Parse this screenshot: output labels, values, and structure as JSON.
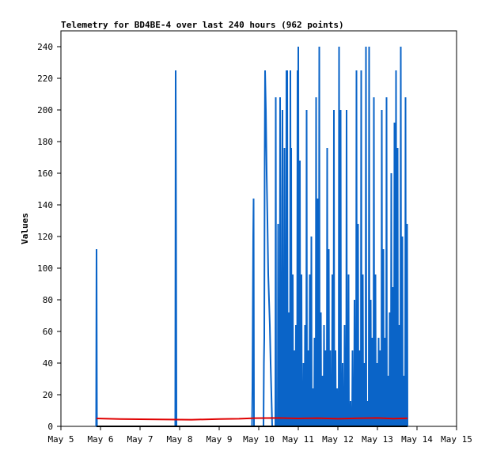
{
  "chart_data": {
    "type": "line",
    "title": "Telemetry for BD4BE-4 over last 240 hours (962 points)",
    "ylabel": "Values",
    "xlabel": "",
    "xlim": [
      5,
      15
    ],
    "ylim": [
      0,
      250
    ],
    "x_ticks": [
      {
        "value": 5,
        "label": "May 5"
      },
      {
        "value": 6,
        "label": "May 6"
      },
      {
        "value": 7,
        "label": "May 7"
      },
      {
        "value": 8,
        "label": "May 8"
      },
      {
        "value": 9,
        "label": "May 9"
      },
      {
        "value": 10,
        "label": "May 10"
      },
      {
        "value": 11,
        "label": "May 11"
      },
      {
        "value": 12,
        "label": "May 12"
      },
      {
        "value": 13,
        "label": "May 13"
      },
      {
        "value": 14,
        "label": "May 14"
      },
      {
        "value": 15,
        "label": "May 15"
      }
    ],
    "y_ticks": [
      0,
      20,
      40,
      60,
      80,
      100,
      120,
      140,
      160,
      180,
      200,
      220,
      240
    ],
    "grid": false,
    "colors": {
      "spikes": "#0a64c8",
      "baseline": "#e00000",
      "axis": "#000000"
    },
    "series": [
      {
        "color": "#0a64c8",
        "points": [
          [
            5.89,
            0
          ],
          [
            5.9,
            112
          ],
          [
            5.91,
            0
          ],
          [
            7.89,
            0
          ],
          [
            7.9,
            225
          ],
          [
            7.91,
            128
          ],
          [
            7.92,
            0
          ],
          [
            9.83,
            0
          ],
          [
            9.84,
            24
          ],
          [
            9.85,
            72
          ],
          [
            9.86,
            120
          ],
          [
            9.87,
            144
          ],
          [
            9.88,
            0
          ],
          [
            10.12,
            0
          ],
          [
            10.13,
            40
          ],
          [
            10.14,
            56
          ],
          [
            10.15,
            168
          ],
          [
            10.16,
            225
          ],
          [
            10.18,
            200
          ],
          [
            10.2,
            160
          ],
          [
            10.22,
            130
          ],
          [
            10.24,
            96
          ],
          [
            10.26,
            80
          ],
          [
            10.28,
            64
          ],
          [
            10.3,
            40
          ],
          [
            10.32,
            20
          ],
          [
            10.34,
            0
          ],
          [
            10.42,
            0
          ],
          [
            10.43,
            208
          ],
          [
            10.44,
            0
          ],
          [
            10.48,
            0
          ],
          [
            10.49,
            128
          ],
          [
            10.5,
            0
          ],
          [
            10.53,
            0
          ],
          [
            10.54,
            208
          ],
          [
            10.55,
            40
          ],
          [
            10.56,
            0
          ],
          [
            10.58,
            0
          ],
          [
            10.59,
            144
          ],
          [
            10.6,
            200
          ],
          [
            10.61,
            20
          ],
          [
            10.62,
            0
          ],
          [
            10.64,
            0
          ],
          [
            10.65,
            176
          ],
          [
            10.66,
            48
          ],
          [
            10.67,
            0
          ],
          [
            10.69,
            0
          ],
          [
            10.7,
            225
          ],
          [
            10.71,
            56
          ],
          [
            10.72,
            225
          ],
          [
            10.73,
            0
          ],
          [
            10.75,
            0
          ],
          [
            10.76,
            72
          ],
          [
            10.77,
            0
          ],
          [
            10.79,
            0
          ],
          [
            10.8,
            225
          ],
          [
            10.81,
            16
          ],
          [
            10.82,
            176
          ],
          [
            10.83,
            0
          ],
          [
            10.85,
            0
          ],
          [
            10.86,
            96
          ],
          [
            10.87,
            0
          ],
          [
            10.89,
            0
          ],
          [
            10.9,
            48
          ],
          [
            10.91,
            0
          ],
          [
            10.93,
            0
          ],
          [
            10.94,
            64
          ],
          [
            10.95,
            0
          ],
          [
            10.97,
            0
          ],
          [
            10.98,
            225
          ],
          [
            10.99,
            24
          ],
          [
            11.0,
            240
          ],
          [
            11.01,
            0
          ],
          [
            11.03,
            0
          ],
          [
            11.04,
            168
          ],
          [
            11.05,
            0
          ],
          [
            11.07,
            0
          ],
          [
            11.08,
            96
          ],
          [
            11.09,
            0
          ],
          [
            11.12,
            0
          ],
          [
            11.13,
            40
          ],
          [
            11.14,
            0
          ],
          [
            11.16,
            0
          ],
          [
            11.17,
            64
          ],
          [
            11.18,
            0
          ],
          [
            11.2,
            0
          ],
          [
            11.21,
            200
          ],
          [
            11.22,
            0
          ],
          [
            11.24,
            0
          ],
          [
            11.25,
            48
          ],
          [
            11.26,
            0
          ],
          [
            11.28,
            0
          ],
          [
            11.29,
            96
          ],
          [
            11.3,
            0
          ],
          [
            11.32,
            0
          ],
          [
            11.33,
            120
          ],
          [
            11.34,
            0
          ],
          [
            11.36,
            0
          ],
          [
            11.37,
            24
          ],
          [
            11.38,
            0
          ],
          [
            11.4,
            0
          ],
          [
            11.41,
            56
          ],
          [
            11.42,
            0
          ],
          [
            11.44,
            0
          ],
          [
            11.45,
            208
          ],
          [
            11.46,
            0
          ],
          [
            11.48,
            0
          ],
          [
            11.49,
            144
          ],
          [
            11.5,
            0
          ],
          [
            11.52,
            0
          ],
          [
            11.53,
            240
          ],
          [
            11.54,
            0
          ],
          [
            11.56,
            0
          ],
          [
            11.57,
            72
          ],
          [
            11.58,
            0
          ],
          [
            11.6,
            0
          ],
          [
            11.61,
            32
          ],
          [
            11.62,
            0
          ],
          [
            11.64,
            0
          ],
          [
            11.65,
            64
          ],
          [
            11.66,
            0
          ],
          [
            11.68,
            0
          ],
          [
            11.69,
            48
          ],
          [
            11.7,
            0
          ],
          [
            11.72,
            0
          ],
          [
            11.73,
            176
          ],
          [
            11.74,
            0
          ],
          [
            11.76,
            0
          ],
          [
            11.77,
            112
          ],
          [
            11.78,
            0
          ],
          [
            11.8,
            0
          ],
          [
            11.81,
            48
          ],
          [
            11.82,
            0
          ],
          [
            11.85,
            0
          ],
          [
            11.86,
            96
          ],
          [
            11.87,
            0
          ],
          [
            11.89,
            0
          ],
          [
            11.9,
            200
          ],
          [
            11.91,
            0
          ],
          [
            11.93,
            0
          ],
          [
            11.94,
            48
          ],
          [
            11.95,
            0
          ],
          [
            11.97,
            0
          ],
          [
            11.98,
            24
          ],
          [
            11.99,
            0
          ],
          [
            12.02,
            0
          ],
          [
            12.03,
            240
          ],
          [
            12.04,
            0
          ],
          [
            12.06,
            0
          ],
          [
            12.07,
            200
          ],
          [
            12.08,
            0
          ],
          [
            12.11,
            0
          ],
          [
            12.12,
            40
          ],
          [
            12.13,
            0
          ],
          [
            12.16,
            0
          ],
          [
            12.17,
            64
          ],
          [
            12.18,
            0
          ],
          [
            12.21,
            0
          ],
          [
            12.22,
            200
          ],
          [
            12.23,
            0
          ],
          [
            12.26,
            0
          ],
          [
            12.27,
            96
          ],
          [
            12.28,
            0
          ],
          [
            12.31,
            0
          ],
          [
            12.32,
            16
          ],
          [
            12.33,
            0
          ],
          [
            12.36,
            0
          ],
          [
            12.37,
            48
          ],
          [
            12.38,
            0
          ],
          [
            12.41,
            0
          ],
          [
            12.42,
            80
          ],
          [
            12.43,
            0
          ],
          [
            12.46,
            0
          ],
          [
            12.47,
            225
          ],
          [
            12.48,
            0
          ],
          [
            12.5,
            0
          ],
          [
            12.51,
            128
          ],
          [
            12.52,
            0
          ],
          [
            12.54,
            0
          ],
          [
            12.55,
            48
          ],
          [
            12.56,
            0
          ],
          [
            12.58,
            0
          ],
          [
            12.59,
            225
          ],
          [
            12.6,
            0
          ],
          [
            12.62,
            0
          ],
          [
            12.63,
            96
          ],
          [
            12.64,
            0
          ],
          [
            12.66,
            0
          ],
          [
            12.67,
            40
          ],
          [
            12.68,
            0
          ],
          [
            12.7,
            0
          ],
          [
            12.71,
            240
          ],
          [
            12.72,
            0
          ],
          [
            12.74,
            0
          ],
          [
            12.75,
            16
          ],
          [
            12.76,
            0
          ],
          [
            12.78,
            0
          ],
          [
            12.79,
            240
          ],
          [
            12.8,
            0
          ],
          [
            12.82,
            0
          ],
          [
            12.83,
            80
          ],
          [
            12.84,
            0
          ],
          [
            12.86,
            0
          ],
          [
            12.87,
            56
          ],
          [
            12.88,
            0
          ],
          [
            12.9,
            0
          ],
          [
            12.91,
            208
          ],
          [
            12.92,
            0
          ],
          [
            12.94,
            0
          ],
          [
            12.95,
            96
          ],
          [
            12.96,
            0
          ],
          [
            12.98,
            0
          ],
          [
            12.99,
            40
          ],
          [
            13.0,
            0
          ],
          [
            13.02,
            0
          ],
          [
            13.03,
            56
          ],
          [
            13.04,
            0
          ],
          [
            13.06,
            0
          ],
          [
            13.07,
            48
          ],
          [
            13.08,
            0
          ],
          [
            13.1,
            0
          ],
          [
            13.11,
            200
          ],
          [
            13.12,
            0
          ],
          [
            13.14,
            0
          ],
          [
            13.15,
            112
          ],
          [
            13.16,
            0
          ],
          [
            13.18,
            0
          ],
          [
            13.19,
            56
          ],
          [
            13.2,
            0
          ],
          [
            13.22,
            0
          ],
          [
            13.23,
            208
          ],
          [
            13.24,
            0
          ],
          [
            13.26,
            0
          ],
          [
            13.27,
            32
          ],
          [
            13.28,
            0
          ],
          [
            13.3,
            0
          ],
          [
            13.31,
            72
          ],
          [
            13.32,
            0
          ],
          [
            13.34,
            0
          ],
          [
            13.35,
            160
          ],
          [
            13.36,
            0
          ],
          [
            13.38,
            0
          ],
          [
            13.39,
            88
          ],
          [
            13.4,
            0
          ],
          [
            13.42,
            0
          ],
          [
            13.43,
            192
          ],
          [
            13.44,
            0
          ],
          [
            13.46,
            0
          ],
          [
            13.47,
            225
          ],
          [
            13.48,
            0
          ],
          [
            13.5,
            0
          ],
          [
            13.51,
            176
          ],
          [
            13.52,
            0
          ],
          [
            13.54,
            0
          ],
          [
            13.55,
            64
          ],
          [
            13.56,
            0
          ],
          [
            13.58,
            0
          ],
          [
            13.59,
            240
          ],
          [
            13.6,
            0
          ],
          [
            13.62,
            0
          ],
          [
            13.63,
            120
          ],
          [
            13.64,
            0
          ],
          [
            13.66,
            0
          ],
          [
            13.67,
            32
          ],
          [
            13.68,
            0
          ],
          [
            13.7,
            0
          ],
          [
            13.71,
            208
          ],
          [
            13.72,
            0
          ],
          [
            13.74,
            0
          ],
          [
            13.75,
            128
          ],
          [
            13.76,
            0
          ]
        ]
      },
      {
        "color": "#e00000",
        "points": [
          [
            5.9,
            5
          ],
          [
            6.5,
            4.6
          ],
          [
            7.5,
            4.4
          ],
          [
            8.3,
            4.2
          ],
          [
            9.0,
            4.6
          ],
          [
            9.5,
            4.8
          ],
          [
            9.9,
            5.2
          ],
          [
            10.5,
            5.3
          ],
          [
            11.0,
            5.0
          ],
          [
            11.5,
            5.2
          ],
          [
            12.0,
            4.8
          ],
          [
            12.5,
            5.1
          ],
          [
            13.0,
            5.3
          ],
          [
            13.4,
            4.9
          ],
          [
            13.76,
            5.1
          ]
        ]
      },
      {
        "color": "#000000",
        "points": [
          [
            5.9,
            0
          ],
          [
            13.76,
            0
          ]
        ]
      }
    ]
  }
}
